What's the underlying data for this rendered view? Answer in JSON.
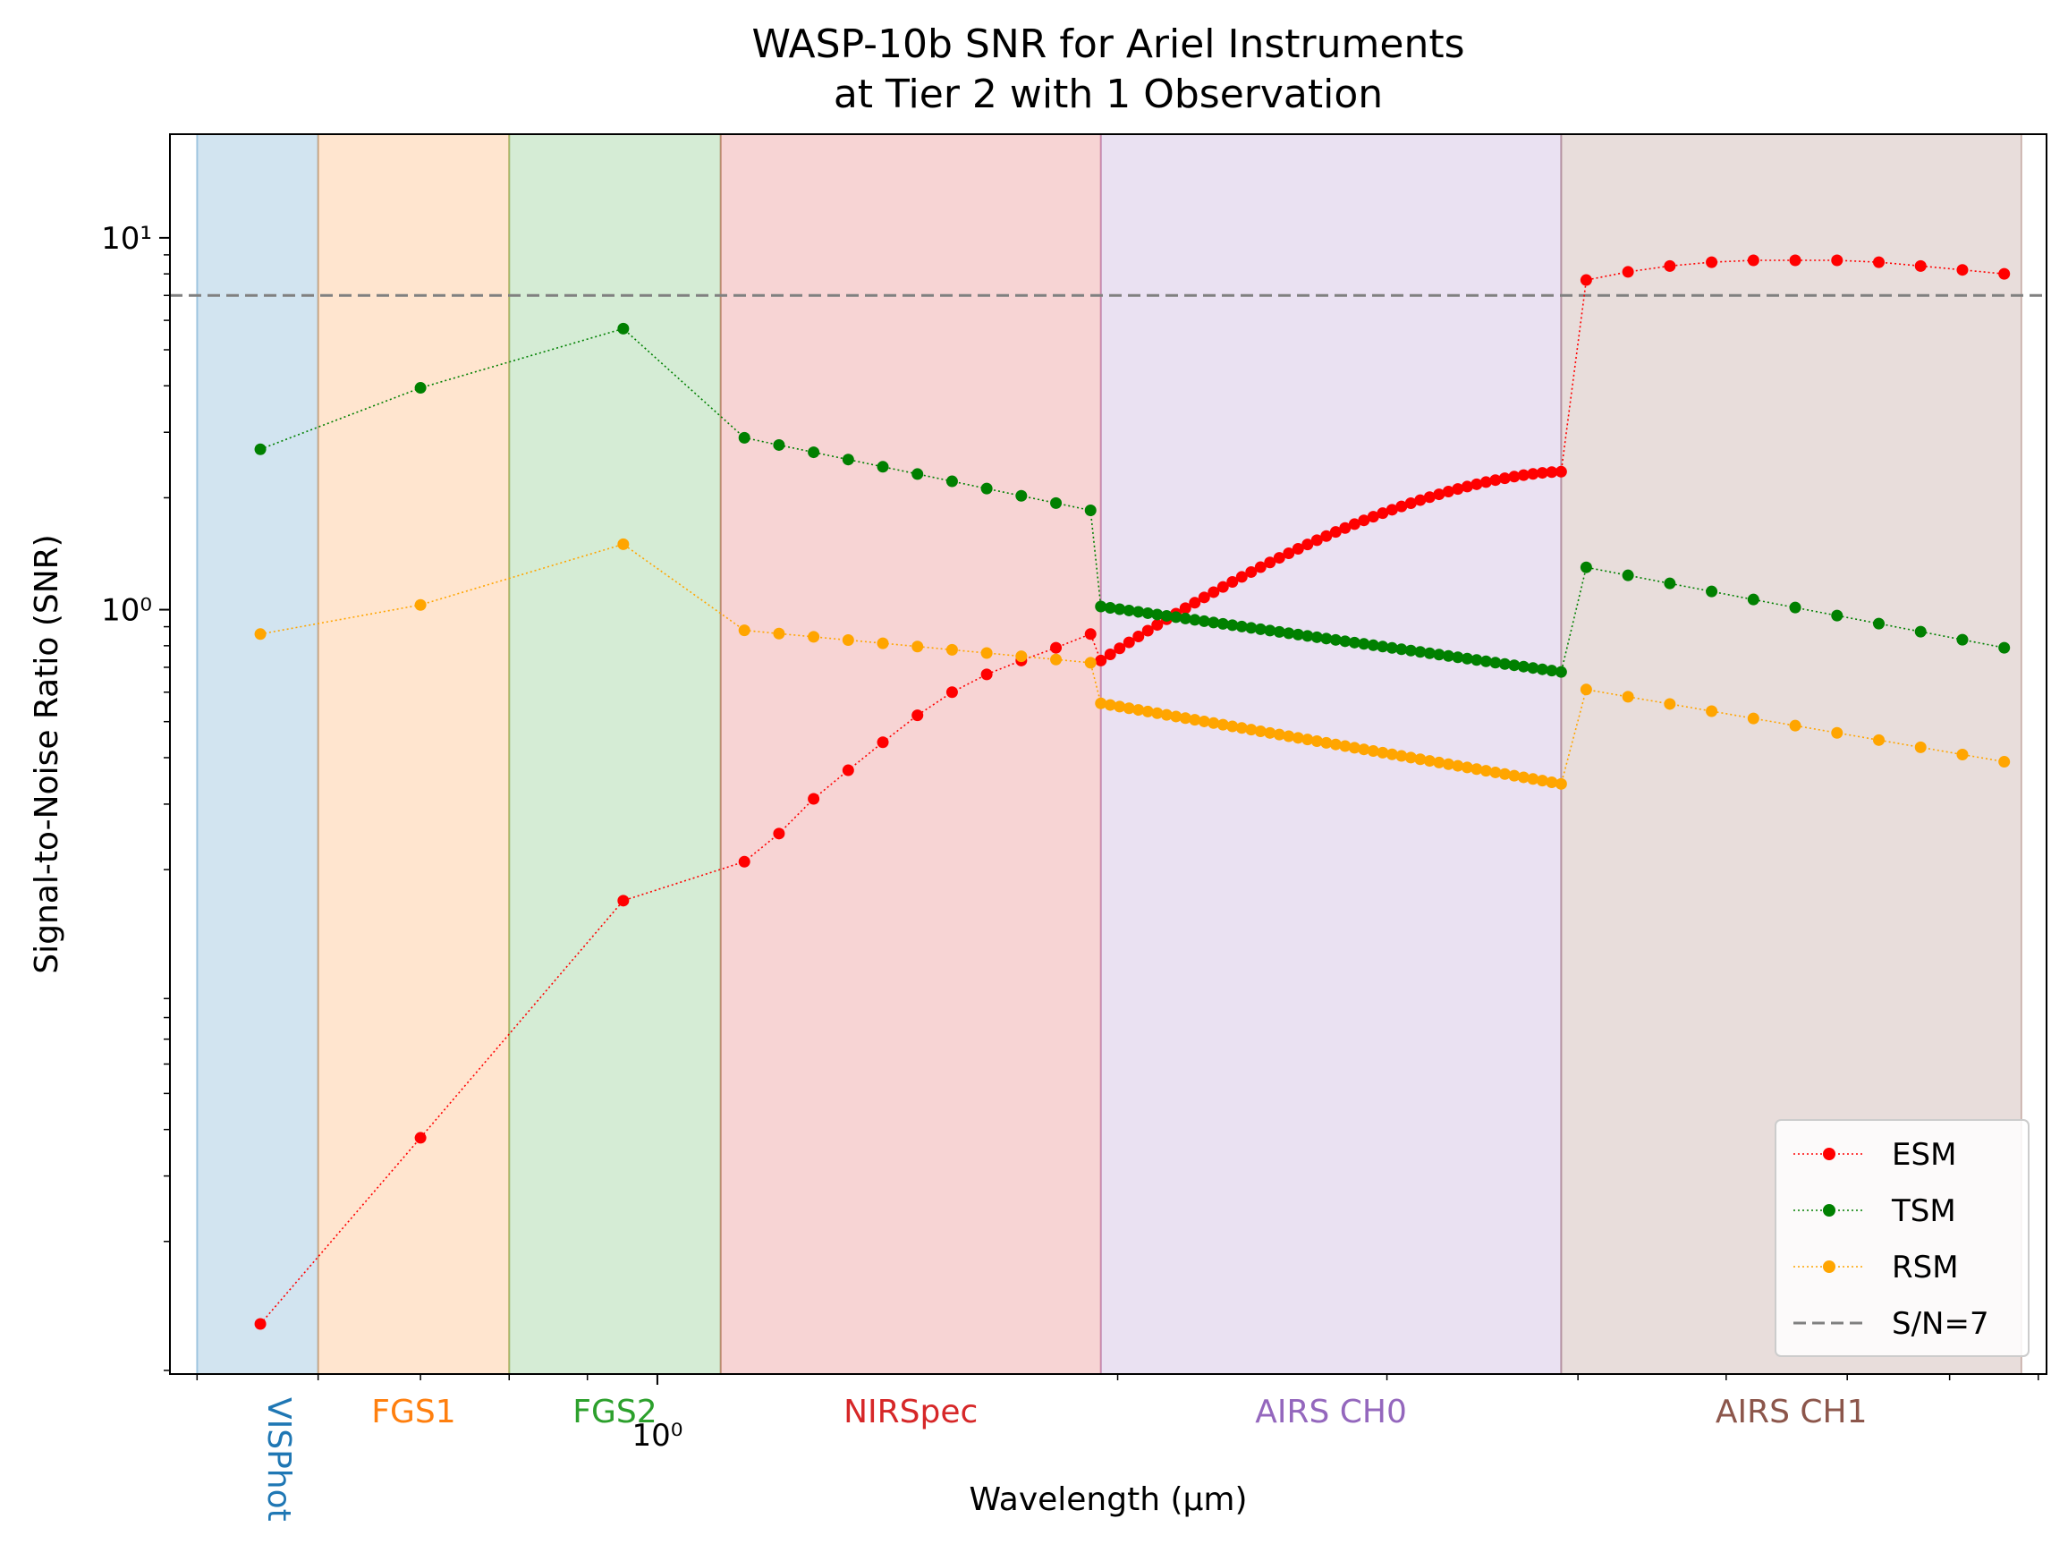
{
  "chart_data": {
    "type": "scatter",
    "title": "WASP-10b SNR for Ariel Instruments",
    "subtitle": "at Tier 2 with 1 Observation",
    "xlabel": "Wavelength (μm)",
    "ylabel": "Signal-to-Noise Ratio (SNR)",
    "x_scale": "log",
    "y_scale": "log",
    "xlim": [
      0.48,
      8.1
    ],
    "ylim": [
      0.0088,
      19
    ],
    "x_ticks": [
      {
        "value": 1.0,
        "label": "10⁰"
      }
    ],
    "y_ticks": [
      {
        "value": 1.0,
        "label": "10⁰"
      },
      {
        "value": 10,
        "label": "10¹"
      }
    ],
    "threshold": {
      "name": "S/N=7",
      "value": 7,
      "color": "#808080"
    },
    "legend_position": "lower-right",
    "bands": [
      {
        "name": "VISPhot",
        "range": [
          0.5,
          0.6
        ],
        "color": "#1f77b4",
        "label_rotated": true
      },
      {
        "name": "FGS1",
        "range": [
          0.6,
          0.8
        ],
        "color": "#ff7f0e"
      },
      {
        "name": "FGS2",
        "range": [
          0.8,
          1.1
        ],
        "color": "#2ca02c"
      },
      {
        "name": "NIRSpec",
        "range": [
          1.1,
          1.95
        ],
        "color": "#d62728"
      },
      {
        "name": "AIRS CH0",
        "range": [
          1.95,
          3.9
        ],
        "color": "#9467bd"
      },
      {
        "name": "AIRS CH1",
        "range": [
          3.9,
          7.8
        ],
        "color": "#8c564b"
      }
    ],
    "series_colors": {
      "ESM": "#ff0000",
      "TSM": "#008000",
      "RSM": "#ffa500"
    },
    "segments": [
      {
        "key": "visphot",
        "x": [
          0.55
        ],
        "ESM": [
          0.012
        ],
        "TSM": [
          2.7
        ],
        "RSM": [
          0.86
        ]
      },
      {
        "key": "fgs1",
        "x": [
          0.7
        ],
        "ESM": [
          0.038
        ],
        "TSM": [
          3.95
        ],
        "RSM": [
          1.03
        ]
      },
      {
        "key": "fgs2",
        "x": [
          0.95
        ],
        "ESM": [
          0.165
        ],
        "TSM": [
          5.7
        ],
        "RSM": [
          1.5
        ]
      },
      {
        "key": "nirspec",
        "x_range": [
          1.14,
          1.92
        ],
        "n": 11,
        "ESM": [
          0.23,
          0.34
        ],
        "ESM_end": [
          0.5,
          0.85
        ],
        "ESM_ctrl": "manual",
        "ESM_values": [
          0.21,
          0.25,
          0.31,
          0.37,
          0.44,
          0.52,
          0.6,
          0.67,
          0.73,
          0.79,
          0.86
        ],
        "TSM": [
          2.9,
          1.85
        ],
        "RSM": [
          0.88,
          0.72
        ]
      },
      {
        "key": "airs_ch0",
        "x_range": [
          1.95,
          3.9
        ],
        "n": 50,
        "ESM": [
          0.73,
          2.35
        ],
        "ESM_shape": "concave",
        "TSM": [
          1.02,
          0.68
        ],
        "RSM": [
          0.56,
          0.34
        ]
      },
      {
        "key": "airs_ch1",
        "x_range": [
          4.05,
          7.6
        ],
        "n": 11,
        "ESM": [
          7.7,
          8.8
        ],
        "ESM_values": [
          7.7,
          8.1,
          8.4,
          8.6,
          8.7,
          8.7,
          8.7,
          8.6,
          8.4,
          8.2,
          8.0
        ],
        "TSM": [
          1.3,
          0.79
        ],
        "RSM": [
          0.61,
          0.39
        ]
      }
    ],
    "legend": [
      {
        "name": "ESM",
        "style": "dotted-marker"
      },
      {
        "name": "TSM",
        "style": "dotted-marker"
      },
      {
        "name": "RSM",
        "style": "dotted-marker"
      },
      {
        "name": "S/N=7",
        "style": "dashed"
      }
    ]
  }
}
